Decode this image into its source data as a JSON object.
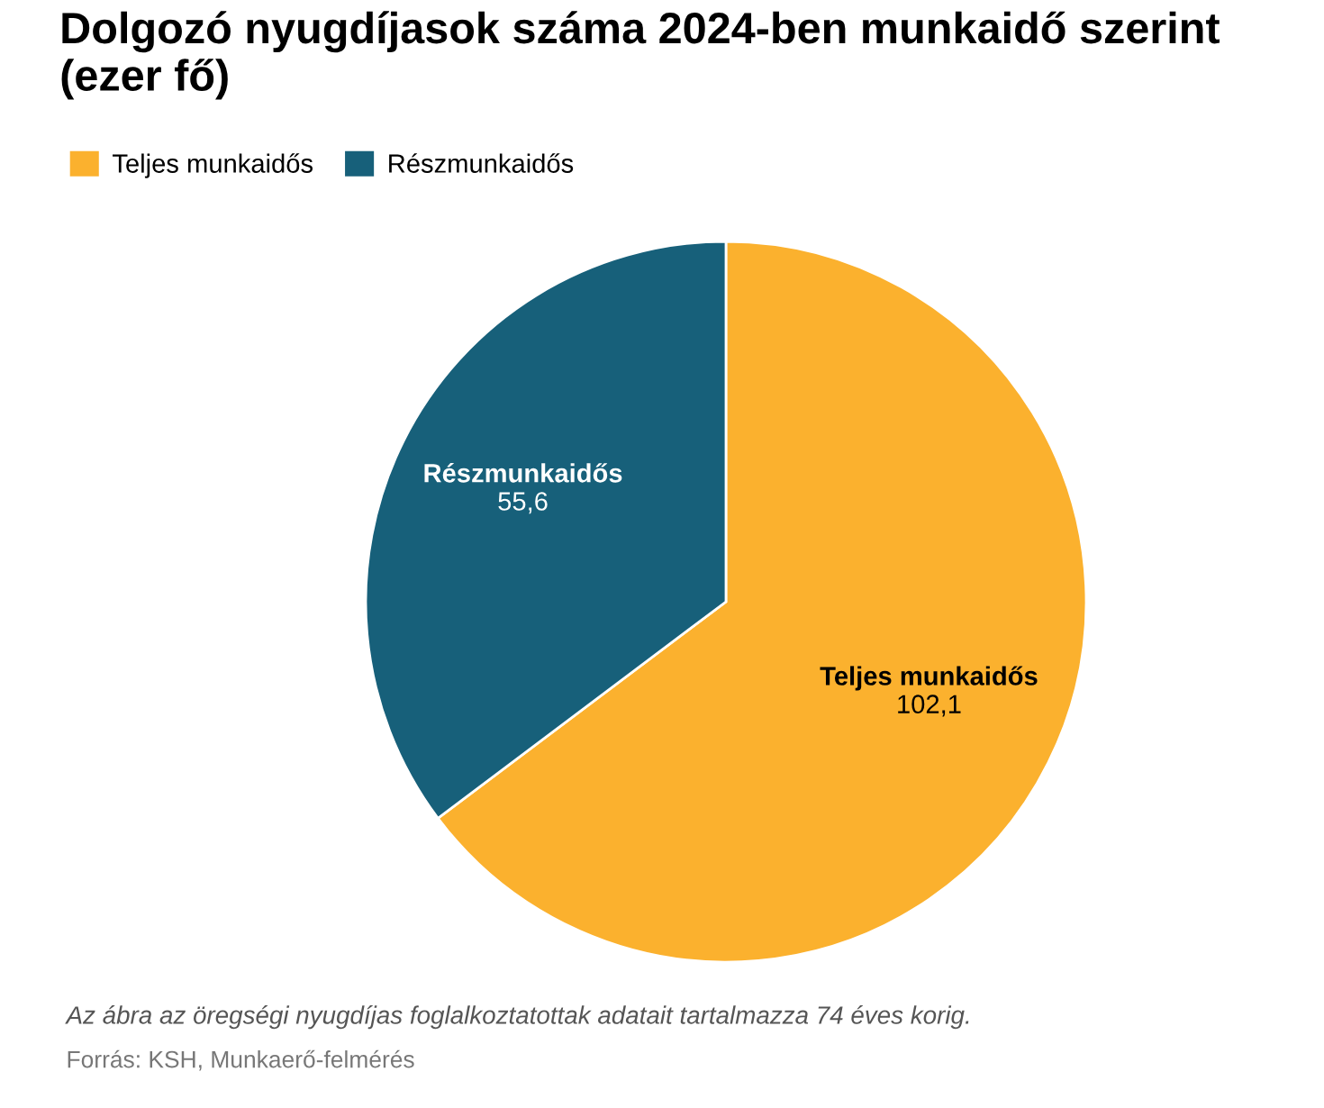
{
  "chart_data": {
    "type": "pie",
    "title": "Dolgozó nyugdíjasok száma 2024-ben munkaidő szerint (ezer fő)",
    "categories": [
      "Teljes munkaidős",
      "Részmunkaidős"
    ],
    "values": [
      102.1,
      55.6
    ],
    "value_labels": [
      "102,1",
      "55,6"
    ],
    "colors": [
      "#fbb12e",
      "#17607a"
    ],
    "legend": "top left",
    "annotations": [
      "Az ábra az öregségi nyugdíjas foglalkoztatottak adatait tartalmazza 74 éves korig.",
      "Forrás: KSH, Munkaerő-felmérés"
    ]
  }
}
